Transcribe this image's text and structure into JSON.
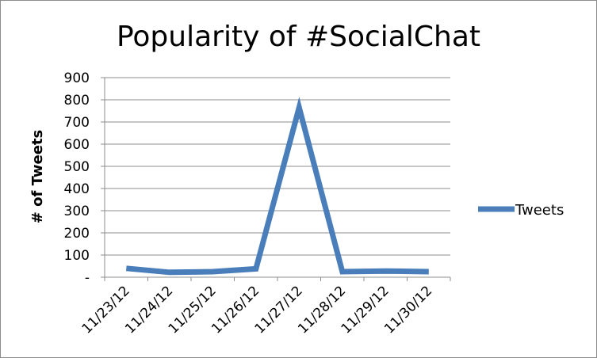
{
  "chart_data": {
    "type": "line",
    "title": "Popularity of #SocialChat",
    "xlabel": "",
    "ylabel": "# of Tweets",
    "categories": [
      "11/23/12",
      "11/24/12",
      "11/25/12",
      "11/26/12",
      "11/27/12",
      "11/28/12",
      "11/29/12",
      "11/30/12"
    ],
    "y_ticks": [
      "-",
      "100",
      "200",
      "300",
      "400",
      "500",
      "600",
      "700",
      "800",
      "900"
    ],
    "ylim": [
      0,
      900
    ],
    "grid": "horizontal",
    "legend_position": "right",
    "series": [
      {
        "name": "Tweets",
        "color": "#4a7ebb",
        "values": [
          40,
          22,
          25,
          38,
          765,
          25,
          28,
          25
        ]
      }
    ]
  }
}
